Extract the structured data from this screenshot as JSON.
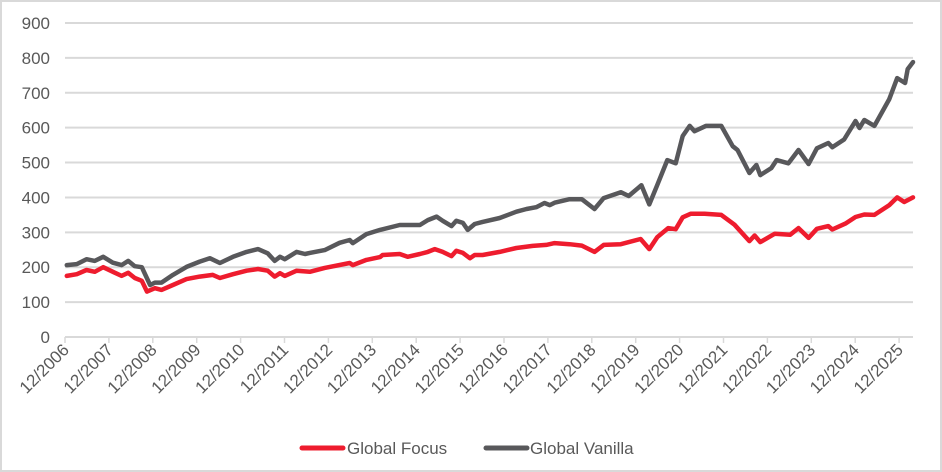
{
  "chart_data": {
    "type": "line",
    "title": "",
    "xlabel": "",
    "ylabel": "",
    "ylim": [
      0,
      900
    ],
    "yticks": [
      0,
      100,
      200,
      300,
      400,
      500,
      600,
      700,
      800,
      900
    ],
    "xlim": [
      2006.92,
      2026.25
    ],
    "xtick_labels": [
      "12/2006",
      "12/2007",
      "12/2008",
      "12/2009",
      "12/2010",
      "12/2011",
      "12/2012",
      "12/2013",
      "12/2014",
      "12/2015",
      "12/2016",
      "12/2017",
      "12/2018",
      "12/2019",
      "12/2020",
      "12/2021",
      "12/2022",
      "12/2023",
      "12/2024",
      "12/2025"
    ],
    "grid": true,
    "legend_position": "bottom",
    "series": [
      {
        "name": "Global Focus",
        "color": "#ee1c2e",
        "points": [
          [
            2006.96,
            175
          ],
          [
            2007.19,
            180
          ],
          [
            2007.41,
            192
          ],
          [
            2007.6,
            187
          ],
          [
            2007.79,
            200
          ],
          [
            2008.06,
            184
          ],
          [
            2008.21,
            175
          ],
          [
            2008.36,
            184
          ],
          [
            2008.51,
            169
          ],
          [
            2008.67,
            161
          ],
          [
            2008.79,
            130
          ],
          [
            2008.97,
            140
          ],
          [
            2009.12,
            135
          ],
          [
            2009.38,
            149
          ],
          [
            2009.69,
            166
          ],
          [
            2009.99,
            173
          ],
          [
            2010.29,
            178
          ],
          [
            2010.45,
            169
          ],
          [
            2010.75,
            180
          ],
          [
            2011.06,
            190
          ],
          [
            2011.32,
            195
          ],
          [
            2011.54,
            190
          ],
          [
            2011.7,
            173
          ],
          [
            2011.82,
            183
          ],
          [
            2011.93,
            175
          ],
          [
            2012.2,
            190
          ],
          [
            2012.5,
            187
          ],
          [
            2012.84,
            198
          ],
          [
            2013.41,
            212
          ],
          [
            2013.48,
            206
          ],
          [
            2013.79,
            221
          ],
          [
            2014.1,
            229
          ],
          [
            2014.16,
            235
          ],
          [
            2014.55,
            238
          ],
          [
            2014.73,
            230
          ],
          [
            2015.01,
            238
          ],
          [
            2015.19,
            244
          ],
          [
            2015.35,
            252
          ],
          [
            2015.53,
            244
          ],
          [
            2015.73,
            232
          ],
          [
            2015.84,
            247
          ],
          [
            2015.99,
            241
          ],
          [
            2016.15,
            226
          ],
          [
            2016.26,
            235
          ],
          [
            2016.44,
            235
          ],
          [
            2016.83,
            244
          ],
          [
            2017.21,
            255
          ],
          [
            2017.58,
            261
          ],
          [
            2017.89,
            264
          ],
          [
            2018.08,
            269
          ],
          [
            2018.42,
            266
          ],
          [
            2018.7,
            262
          ],
          [
            2018.99,
            244
          ],
          [
            2019.2,
            264
          ],
          [
            2019.59,
            266
          ],
          [
            2020.04,
            281
          ],
          [
            2020.24,
            252
          ],
          [
            2020.42,
            286
          ],
          [
            2020.67,
            312
          ],
          [
            2020.84,
            309
          ],
          [
            2021.0,
            343
          ],
          [
            2021.18,
            353
          ],
          [
            2021.5,
            353
          ],
          [
            2021.88,
            350
          ],
          [
            2022.18,
            322
          ],
          [
            2022.52,
            275
          ],
          [
            2022.64,
            291
          ],
          [
            2022.77,
            272
          ],
          [
            2023.1,
            296
          ],
          [
            2023.45,
            293
          ],
          [
            2023.64,
            312
          ],
          [
            2023.87,
            284
          ],
          [
            2024.06,
            310
          ],
          [
            2024.32,
            318
          ],
          [
            2024.41,
            308
          ],
          [
            2024.71,
            325
          ],
          [
            2024.94,
            344
          ],
          [
            2025.14,
            351
          ],
          [
            2025.37,
            350
          ],
          [
            2025.71,
            378
          ],
          [
            2025.89,
            400
          ],
          [
            2026.05,
            387
          ],
          [
            2026.25,
            400
          ]
        ]
      },
      {
        "name": "Global Vanilla",
        "color": "#58585b",
        "points": [
          [
            2006.96,
            206
          ],
          [
            2007.19,
            209
          ],
          [
            2007.41,
            223
          ],
          [
            2007.6,
            218
          ],
          [
            2007.79,
            230
          ],
          [
            2008.01,
            213
          ],
          [
            2008.21,
            206
          ],
          [
            2008.36,
            218
          ],
          [
            2008.51,
            203
          ],
          [
            2008.67,
            200
          ],
          [
            2008.86,
            149
          ],
          [
            2008.97,
            156
          ],
          [
            2009.12,
            156
          ],
          [
            2009.38,
            178
          ],
          [
            2009.69,
            201
          ],
          [
            2009.99,
            216
          ],
          [
            2010.22,
            226
          ],
          [
            2010.45,
            212
          ],
          [
            2010.75,
            230
          ],
          [
            2011.06,
            244
          ],
          [
            2011.32,
            252
          ],
          [
            2011.54,
            240
          ],
          [
            2011.7,
            218
          ],
          [
            2011.82,
            230
          ],
          [
            2011.93,
            223
          ],
          [
            2012.2,
            244
          ],
          [
            2012.39,
            238
          ],
          [
            2012.5,
            241
          ],
          [
            2012.84,
            249
          ],
          [
            2013.18,
            270
          ],
          [
            2013.41,
            278
          ],
          [
            2013.48,
            269
          ],
          [
            2013.79,
            295
          ],
          [
            2014.1,
            307
          ],
          [
            2014.55,
            321
          ],
          [
            2015.01,
            321
          ],
          [
            2015.19,
            335
          ],
          [
            2015.39,
            345
          ],
          [
            2015.53,
            333
          ],
          [
            2015.73,
            318
          ],
          [
            2015.84,
            333
          ],
          [
            2015.99,
            327
          ],
          [
            2016.1,
            307
          ],
          [
            2016.26,
            324
          ],
          [
            2016.44,
            330
          ],
          [
            2016.83,
            341
          ],
          [
            2017.21,
            359
          ],
          [
            2017.44,
            367
          ],
          [
            2017.66,
            372
          ],
          [
            2017.85,
            384
          ],
          [
            2017.97,
            378
          ],
          [
            2018.08,
            385
          ],
          [
            2018.42,
            395
          ],
          [
            2018.7,
            395
          ],
          [
            2018.99,
            367
          ],
          [
            2019.2,
            398
          ],
          [
            2019.59,
            415
          ],
          [
            2019.77,
            404
          ],
          [
            2020.06,
            435
          ],
          [
            2020.24,
            380
          ],
          [
            2020.42,
            435
          ],
          [
            2020.65,
            507
          ],
          [
            2020.84,
            498
          ],
          [
            2021.0,
            576
          ],
          [
            2021.16,
            605
          ],
          [
            2021.27,
            590
          ],
          [
            2021.53,
            605
          ],
          [
            2021.88,
            605
          ],
          [
            2022.14,
            547
          ],
          [
            2022.25,
            536
          ],
          [
            2022.52,
            470
          ],
          [
            2022.68,
            493
          ],
          [
            2022.77,
            464
          ],
          [
            2023.02,
            484
          ],
          [
            2023.14,
            507
          ],
          [
            2023.41,
            498
          ],
          [
            2023.64,
            536
          ],
          [
            2023.87,
            496
          ],
          [
            2024.06,
            541
          ],
          [
            2024.32,
            556
          ],
          [
            2024.41,
            544
          ],
          [
            2024.68,
            566
          ],
          [
            2024.94,
            619
          ],
          [
            2025.03,
            599
          ],
          [
            2025.14,
            622
          ],
          [
            2025.37,
            605
          ],
          [
            2025.71,
            682
          ],
          [
            2025.89,
            742
          ],
          [
            2026.07,
            728
          ],
          [
            2026.13,
            768
          ],
          [
            2026.25,
            788
          ]
        ]
      }
    ]
  },
  "colors": {
    "grid": "#d9d9d9",
    "border": "#d9d9d9"
  }
}
